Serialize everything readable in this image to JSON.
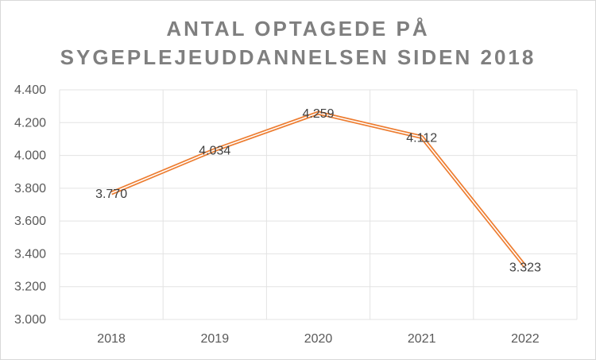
{
  "chart_data": {
    "type": "line",
    "title": [
      "ANTAL OPTAGEDE PÅ",
      "SYGEPLEJEUDDANNELSEN SIDEN 2018"
    ],
    "categories": [
      "2018",
      "2019",
      "2020",
      "2021",
      "2022"
    ],
    "series": [
      {
        "values": [
          3770,
          4034,
          4259,
          4112,
          3323
        ],
        "labels": [
          "3.770",
          "4.034",
          "4.259",
          "4.112",
          "3.323"
        ]
      }
    ],
    "ylim": [
      3000,
      4400
    ],
    "yticks": [
      3000,
      3200,
      3400,
      3600,
      3800,
      4000,
      4200,
      4400
    ],
    "ytick_labels": [
      "3.000",
      "3.200",
      "3.400",
      "3.600",
      "3.800",
      "4.000",
      "4.200",
      "4.400"
    ],
    "grid": true,
    "line_color": "#ED7D31"
  }
}
